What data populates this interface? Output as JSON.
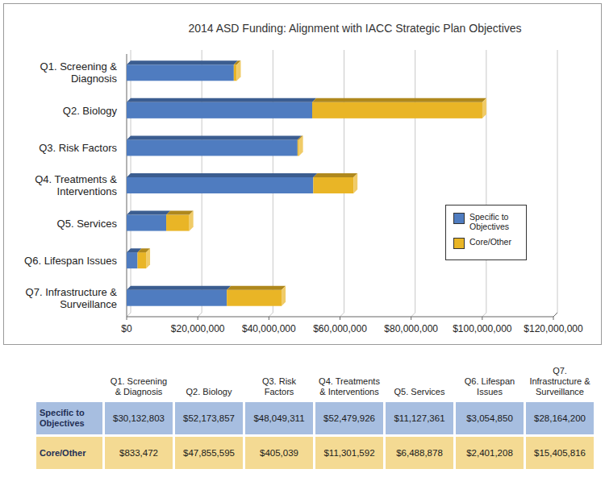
{
  "chart_data": {
    "type": "bar",
    "orientation": "horizontal",
    "stacked": true,
    "title": "2014 ASD Funding: Alignment with IACC Strategic Plan Objectives",
    "categories": [
      "Q1. Screening & Diagnosis",
      "Q2. Biology",
      "Q3. Risk Factors",
      "Q4. Treatments & Interventions",
      "Q5. Services",
      "Q6. Lifespan Issues",
      "Q7. Infrastructure & Surveillance"
    ],
    "series": [
      {
        "name": "Specific to Objectives",
        "color": "#4f7cc0",
        "values": [
          30132803,
          52173857,
          48049311,
          52479926,
          11127361,
          3054850,
          28164200
        ],
        "value_labels": [
          "$30,132,803",
          "$52,173,857",
          "$48,049,311",
          "$52,479,926",
          "$11,127,361",
          "$3,054,850",
          "$28,164,200"
        ]
      },
      {
        "name": "Core/Other",
        "color": "#e9b526",
        "values": [
          833472,
          47855595,
          405039,
          11301592,
          6488878,
          2401208,
          15405816
        ],
        "value_labels": [
          "$833,472",
          "$47,855,595",
          "$405,039",
          "$11,301,592",
          "$6,488,878",
          "$2,401,208",
          "$15,405,816"
        ]
      }
    ],
    "xlim": [
      0,
      120000000
    ],
    "xticks": [
      {
        "value": 0,
        "label": "$0"
      },
      {
        "value": 20000000,
        "label": "$20,000,000"
      },
      {
        "value": 40000000,
        "label": "$40,000,000"
      },
      {
        "value": 60000000,
        "label": "$60,000,000"
      },
      {
        "value": 80000000,
        "label": "$80,000,000"
      },
      {
        "value": 100000000,
        "label": "$100,000,000"
      },
      {
        "value": 120000000,
        "label": "$120,000,000"
      }
    ],
    "grid": true,
    "legend": "right"
  }
}
